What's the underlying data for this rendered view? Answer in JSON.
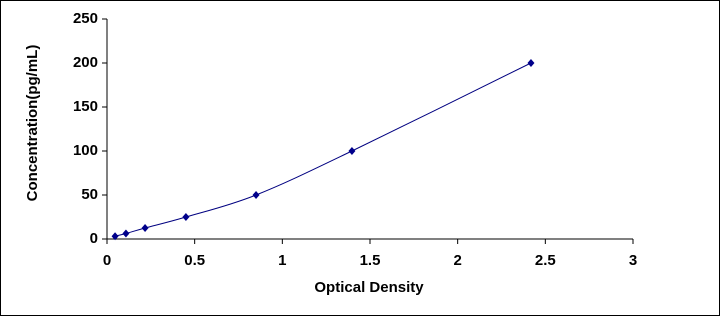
{
  "chart_data": {
    "type": "scatter",
    "x_label": "Optical Density",
    "y_label": "Concentration(pg/mL)",
    "series": [
      {
        "color": "#00008b",
        "x": [
          0.046,
          0.108,
          0.217,
          0.45,
          0.85,
          1.397,
          2.418
        ],
        "values": [
          3.125,
          6.25,
          12.5,
          25,
          50,
          100,
          200
        ]
      }
    ],
    "xlim": [
      0,
      3
    ],
    "xticks": [
      0,
      0.5,
      1,
      1.5,
      2,
      2.5,
      3
    ],
    "ylim": [
      0,
      250
    ],
    "yticks": [
      0,
      50,
      100,
      150,
      200,
      250
    ],
    "smooth_line": true
  }
}
